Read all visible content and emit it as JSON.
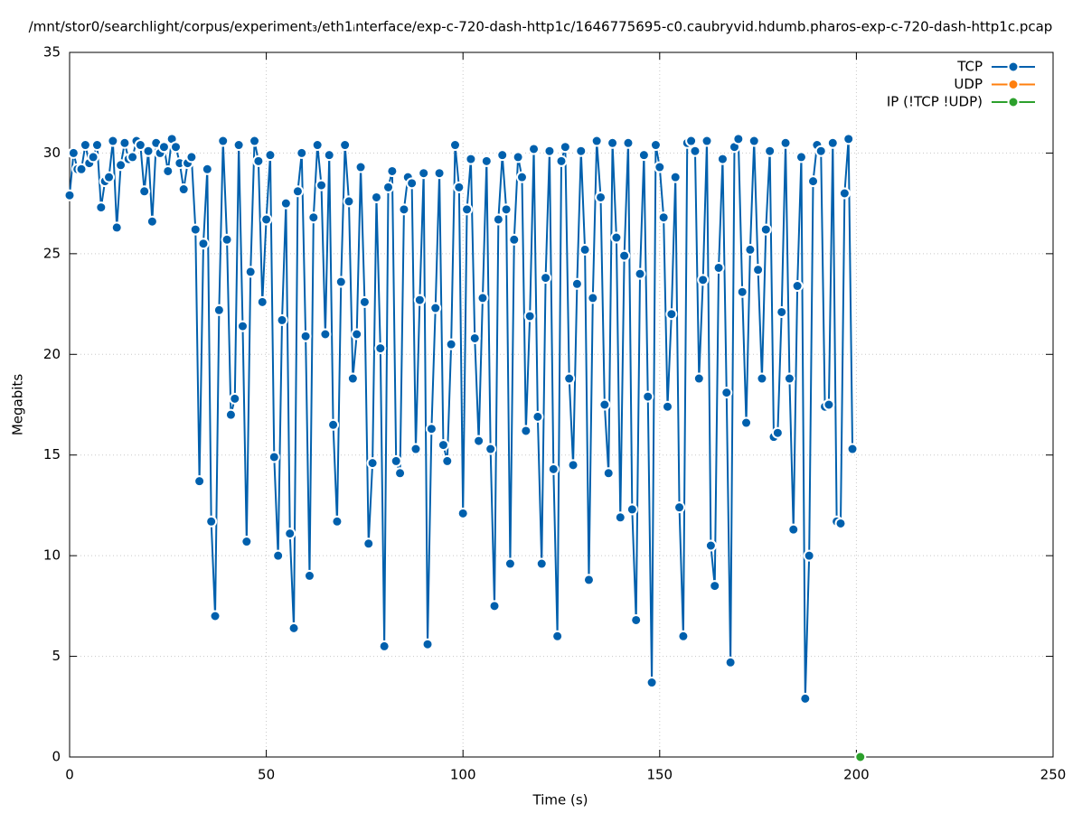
{
  "chart_data": {
    "type": "line",
    "title": "/mnt/stor0/searchlight/corpus/experiment₃/eth1ᵢnterface/exp-c-720-dash-http1c/1646775695-c0.caubryvid.hdumb.pharos-exp-c-720-dash-http1c.pcap",
    "x_label": "Time (s)",
    "y_label": "Megabits",
    "xlim": [
      0,
      250
    ],
    "xticks": [
      0,
      50,
      100,
      150,
      200,
      250
    ],
    "ylim": [
      0,
      35
    ],
    "yticks": [
      0,
      5,
      10,
      15,
      20,
      25,
      30,
      35
    ],
    "grid": true,
    "legend": "top-right",
    "series": [
      {
        "name": "TCP",
        "color": "#0060ad",
        "x": [
          0,
          1,
          2,
          3,
          4,
          5,
          6,
          7,
          8,
          9,
          10,
          11,
          12,
          13,
          14,
          15,
          16,
          17,
          18,
          19,
          20,
          21,
          22,
          23,
          24,
          25,
          26,
          27,
          28,
          29,
          30,
          31,
          32,
          33,
          34,
          35,
          36,
          37,
          38,
          39,
          40,
          41,
          42,
          43,
          44,
          45,
          46,
          47,
          48,
          49,
          50,
          51,
          52,
          53,
          54,
          55,
          56,
          57,
          58,
          59,
          60,
          61,
          62,
          63,
          64,
          65,
          66,
          67,
          68,
          69,
          70,
          71,
          72,
          73,
          74,
          75,
          76,
          77,
          78,
          79,
          80,
          81,
          82,
          83,
          84,
          85,
          86,
          87,
          88,
          89,
          90,
          91,
          92,
          93,
          94,
          95,
          96,
          97,
          98,
          99,
          100,
          101,
          102,
          103,
          104,
          105,
          106,
          107,
          108,
          109,
          110,
          111,
          112,
          113,
          114,
          115,
          116,
          117,
          118,
          119,
          120,
          121,
          122,
          123,
          124,
          125,
          126,
          127,
          128,
          129,
          130,
          131,
          132,
          133,
          134,
          135,
          136,
          137,
          138,
          139,
          140,
          141,
          142,
          143,
          144,
          145,
          146,
          147,
          148,
          149,
          150,
          151,
          152,
          153,
          154,
          155,
          156,
          157,
          158,
          159,
          160,
          161,
          162,
          163,
          164,
          165,
          166,
          167,
          168,
          169,
          170,
          171,
          172,
          173,
          174,
          175,
          176,
          177,
          178,
          179,
          180,
          181,
          182,
          183,
          184,
          185,
          186,
          187,
          188,
          189,
          190,
          191,
          192,
          193,
          194,
          195,
          196,
          197,
          198,
          199
        ],
        "values": [
          27.9,
          30.0,
          29.2,
          29.2,
          30.4,
          29.5,
          29.8,
          30.4,
          27.3,
          28.6,
          28.8,
          30.6,
          26.3,
          29.4,
          30.5,
          29.7,
          29.8,
          30.6,
          30.4,
          28.1,
          30.1,
          26.6,
          30.5,
          30.0,
          30.3,
          29.1,
          30.7,
          30.3,
          29.5,
          28.2,
          29.5,
          29.8,
          26.2,
          13.7,
          25.5,
          29.2,
          11.7,
          7.0,
          22.2,
          30.6,
          25.7,
          17.0,
          17.8,
          30.4,
          21.4,
          10.7,
          24.1,
          30.6,
          29.6,
          22.6,
          26.7,
          29.9,
          14.9,
          10.0,
          21.7,
          27.5,
          11.1,
          6.4,
          28.1,
          30.0,
          20.9,
          9.0,
          26.8,
          30.4,
          28.4,
          21.0,
          29.9,
          16.5,
          11.7,
          23.6,
          30.4,
          27.6,
          18.8,
          21.0,
          29.3,
          22.6,
          10.6,
          14.6,
          27.8,
          20.3,
          5.5,
          28.3,
          29.1,
          14.7,
          14.1,
          27.2,
          28.8,
          28.5,
          15.3,
          22.7,
          29.0,
          5.6,
          16.3,
          22.3,
          29.0,
          15.5,
          14.7,
          20.5,
          30.4,
          28.3,
          12.1,
          27.2,
          29.7,
          20.8,
          15.7,
          22.8,
          29.6,
          15.3,
          7.5,
          26.7,
          29.9,
          27.2,
          9.6,
          25.7,
          29.8,
          28.8,
          16.2,
          21.9,
          30.2,
          16.9,
          9.6,
          23.8,
          30.1,
          14.3,
          6.0,
          29.6,
          30.3,
          18.8,
          14.5,
          23.5,
          30.1,
          25.2,
          8.8,
          22.8,
          30.6,
          27.8,
          17.5,
          14.1,
          30.5,
          25.8,
          11.9,
          24.9,
          30.5,
          12.3,
          6.8,
          24.0,
          29.9,
          17.9,
          3.7,
          30.4,
          29.3,
          26.8,
          17.4,
          22.0,
          28.8,
          12.4,
          6.0,
          30.5,
          30.6,
          30.1,
          18.8,
          23.7,
          30.6,
          10.5,
          8.5,
          24.3,
          29.7,
          18.1,
          4.7,
          30.3,
          30.7,
          23.1,
          16.6,
          25.2,
          30.6,
          24.2,
          18.8,
          26.2,
          30.1,
          15.9,
          16.1,
          22.1,
          30.5,
          18.8,
          11.3,
          23.4,
          29.8,
          2.9,
          10.0,
          28.6,
          30.4,
          30.1,
          17.4,
          17.5,
          30.5,
          11.7,
          11.6,
          28.0,
          30.7,
          15.3
        ]
      },
      {
        "name": "UDP",
        "color": "#ff7f0e",
        "x": [],
        "values": []
      },
      {
        "name": "IP (!TCP  !UDP)",
        "color": "#2ca02c",
        "x": [
          201
        ],
        "values": [
          0
        ]
      }
    ]
  }
}
